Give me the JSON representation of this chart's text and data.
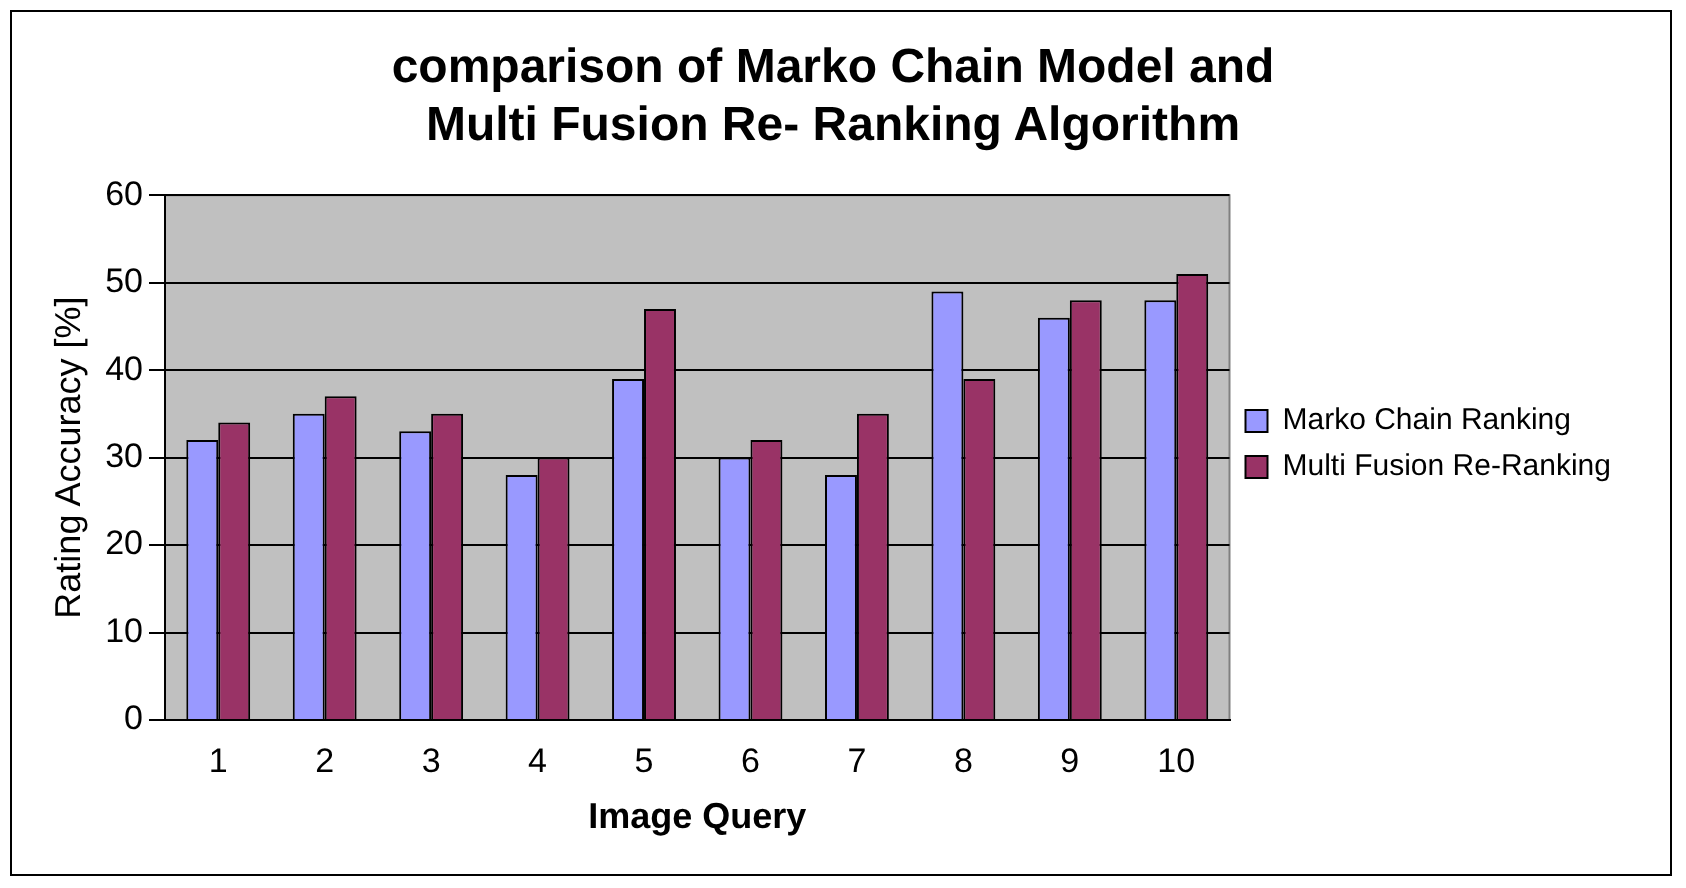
{
  "chart_data": {
    "type": "bar",
    "title": "comparison of Marko Chain Model and Multi Fusion Re- Ranking Algorithm",
    "xlabel": "Image Query",
    "ylabel": "Rating Accuracy [%]",
    "categories": [
      "1",
      "2",
      "3",
      "4",
      "5",
      "6",
      "7",
      "8",
      "9",
      "10"
    ],
    "series": [
      {
        "name": "Marko Chain Ranking",
        "color": "#9999ff",
        "values": [
          32,
          35,
          33,
          28,
          39,
          30,
          28,
          49,
          46,
          48
        ]
      },
      {
        "name": "Multi Fusion Re-Ranking",
        "color": "#993366",
        "values": [
          34,
          37,
          35,
          30,
          47,
          32,
          35,
          39,
          48,
          51
        ]
      }
    ],
    "ylim": [
      0,
      60
    ],
    "yticks": [
      0,
      10,
      20,
      30,
      40,
      50,
      60
    ],
    "grid": "y",
    "legend": "right"
  }
}
